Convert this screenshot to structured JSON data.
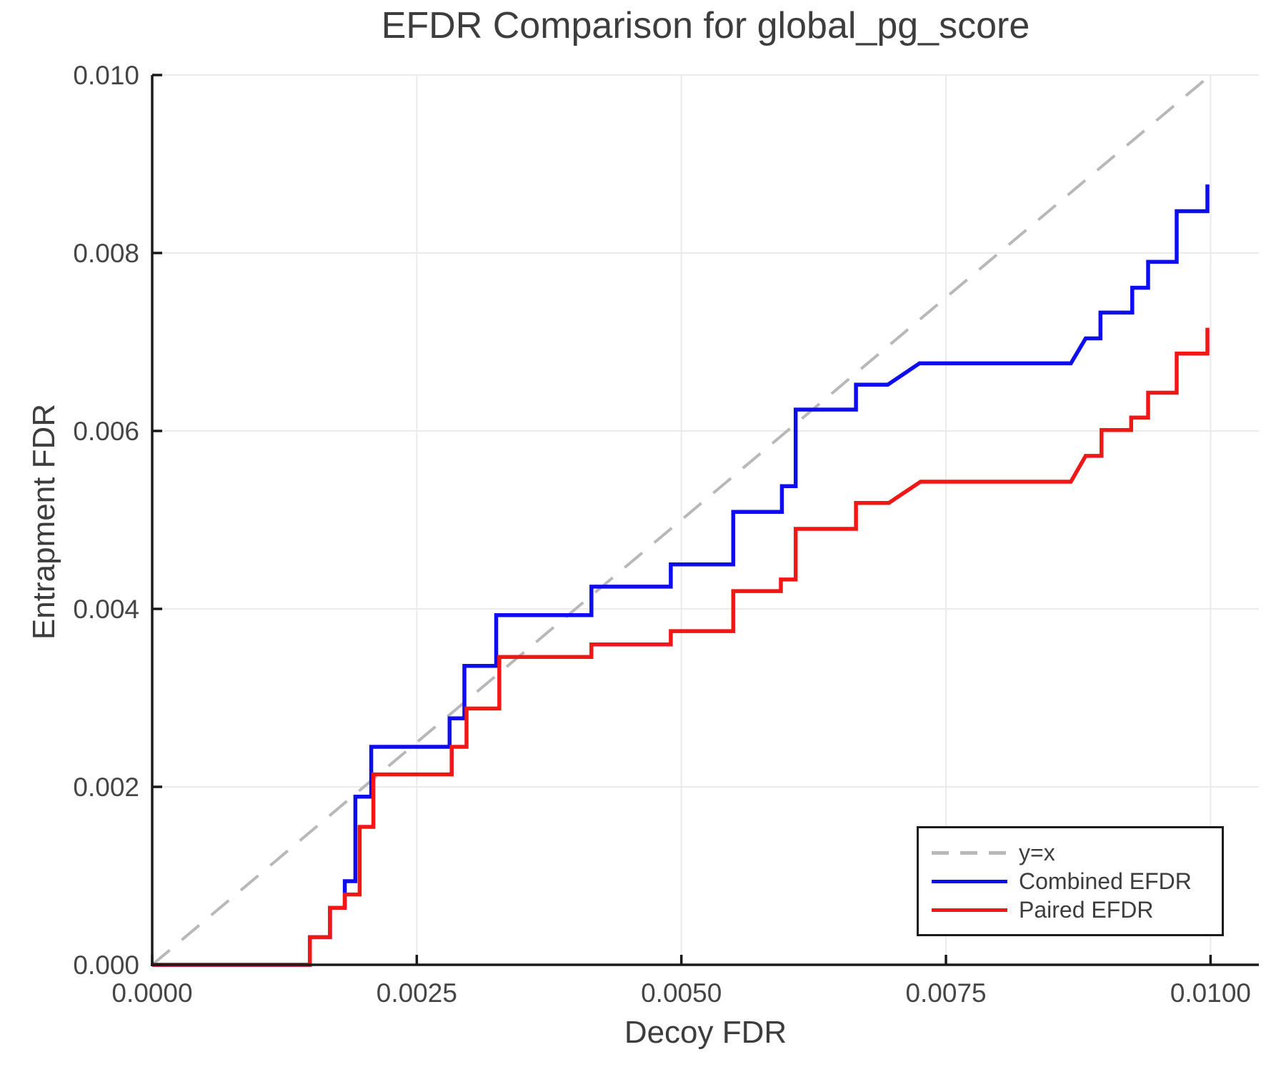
{
  "title": "EFDR Comparison for global_pg_score",
  "axes": {
    "xlabel": "Decoy FDR",
    "ylabel": "Entrapment FDR",
    "x_tick_labels": [
      "0.0000",
      "0.0025",
      "0.0050",
      "0.0075",
      "0.0100"
    ],
    "x_tick_values": [
      0.0,
      0.0025,
      0.005,
      0.0075,
      0.01
    ],
    "y_tick_labels": [
      "0.000",
      "0.002",
      "0.004",
      "0.006",
      "0.008",
      "0.010"
    ],
    "y_tick_values": [
      0.0,
      0.002,
      0.004,
      0.006,
      0.008,
      0.01
    ]
  },
  "legend": {
    "items": [
      {
        "label": "y=x",
        "color": "#b8b8b8",
        "dash": true
      },
      {
        "label": "Combined EFDR",
        "color": "#0d0dee",
        "dash": false
      },
      {
        "label": "Paired EFDR",
        "color": "#f01717",
        "dash": false
      }
    ]
  },
  "colors": {
    "combined": "#0d0dee",
    "paired": "#f01717",
    "identity": "#b8b8b8",
    "grid": "#ebebeb",
    "spine": "#1a1a1a",
    "tick_text": "#454545"
  },
  "chart_data": {
    "type": "line",
    "title": "EFDR Comparison for global_pg_score",
    "xlabel": "Decoy FDR",
    "ylabel": "Entrapment FDR",
    "xlim": [
      0.0,
      0.010457
    ],
    "ylim": [
      0.0,
      0.01
    ],
    "grid": true,
    "legend_position": "lower right",
    "series": [
      {
        "name": "y=x",
        "style": "dashed",
        "color": "#b8b8b8",
        "points": [
          [
            0.0,
            0.0
          ],
          [
            0.01,
            0.01
          ]
        ]
      },
      {
        "name": "Combined EFDR",
        "style": "solid",
        "color": "#0d0dee",
        "points": [
          [
            0.0,
            0.0
          ],
          [
            0.00149,
            0.0
          ],
          [
            0.00149,
            0.00031
          ],
          [
            0.00168,
            0.00031
          ],
          [
            0.00168,
            0.00064
          ],
          [
            0.00182,
            0.00064
          ],
          [
            0.00182,
            0.00094
          ],
          [
            0.00192,
            0.00094
          ],
          [
            0.00192,
            0.00189
          ],
          [
            0.00207,
            0.00189
          ],
          [
            0.00207,
            0.00245
          ],
          [
            0.00281,
            0.00245
          ],
          [
            0.00281,
            0.00277
          ],
          [
            0.00295,
            0.00277
          ],
          [
            0.00295,
            0.00336
          ],
          [
            0.00325,
            0.00336
          ],
          [
            0.00325,
            0.00393
          ],
          [
            0.00415,
            0.00393
          ],
          [
            0.00415,
            0.00425
          ],
          [
            0.0049,
            0.00425
          ],
          [
            0.0049,
            0.0045
          ],
          [
            0.00549,
            0.0045
          ],
          [
            0.00549,
            0.00509
          ],
          [
            0.00595,
            0.00509
          ],
          [
            0.00595,
            0.00538
          ],
          [
            0.00608,
            0.00538
          ],
          [
            0.00608,
            0.00624
          ],
          [
            0.00665,
            0.00624
          ],
          [
            0.00665,
            0.00652
          ],
          [
            0.00695,
            0.00652
          ],
          [
            0.00725,
            0.00676
          ],
          [
            0.00868,
            0.00676
          ],
          [
            0.00882,
            0.00704
          ],
          [
            0.00896,
            0.00704
          ],
          [
            0.00896,
            0.00733
          ],
          [
            0.00926,
            0.00733
          ],
          [
            0.00926,
            0.00761
          ],
          [
            0.00941,
            0.00761
          ],
          [
            0.00941,
            0.0079
          ],
          [
            0.00968,
            0.0079
          ],
          [
            0.00968,
            0.00847
          ],
          [
            0.00997,
            0.00847
          ],
          [
            0.00997,
            0.00877
          ]
        ]
      },
      {
        "name": "Paired EFDR",
        "style": "solid",
        "color": "#f01717",
        "points": [
          [
            0.0,
            0.0
          ],
          [
            0.00149,
            0.0
          ],
          [
            0.00149,
            0.00031
          ],
          [
            0.00168,
            0.00031
          ],
          [
            0.00168,
            0.00064
          ],
          [
            0.00182,
            0.00064
          ],
          [
            0.00182,
            0.00079
          ],
          [
            0.00196,
            0.00079
          ],
          [
            0.00196,
            0.00155
          ],
          [
            0.00209,
            0.00155
          ],
          [
            0.00209,
            0.00214
          ],
          [
            0.00283,
            0.00214
          ],
          [
            0.00283,
            0.00245
          ],
          [
            0.00297,
            0.00245
          ],
          [
            0.00297,
            0.00288
          ],
          [
            0.00328,
            0.00288
          ],
          [
            0.00328,
            0.00346
          ],
          [
            0.00415,
            0.00346
          ],
          [
            0.00415,
            0.0036
          ],
          [
            0.0049,
            0.0036
          ],
          [
            0.0049,
            0.00375
          ],
          [
            0.00549,
            0.00375
          ],
          [
            0.00549,
            0.0042
          ],
          [
            0.00594,
            0.0042
          ],
          [
            0.00594,
            0.00433
          ],
          [
            0.00608,
            0.00433
          ],
          [
            0.00608,
            0.0049
          ],
          [
            0.00665,
            0.0049
          ],
          [
            0.00665,
            0.00519
          ],
          [
            0.00696,
            0.00519
          ],
          [
            0.00726,
            0.00543
          ],
          [
            0.00868,
            0.00543
          ],
          [
            0.00882,
            0.00572
          ],
          [
            0.00897,
            0.00572
          ],
          [
            0.00897,
            0.00601
          ],
          [
            0.00925,
            0.00601
          ],
          [
            0.00925,
            0.00615
          ],
          [
            0.00941,
            0.00615
          ],
          [
            0.00941,
            0.00643
          ],
          [
            0.00968,
            0.00643
          ],
          [
            0.00968,
            0.00687
          ],
          [
            0.00997,
            0.00687
          ],
          [
            0.00997,
            0.00716
          ]
        ]
      }
    ]
  }
}
